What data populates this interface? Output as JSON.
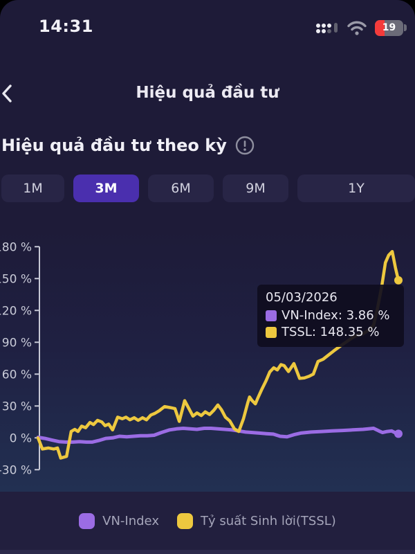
{
  "status_bar": {
    "time": "14:31",
    "battery_level": "19"
  },
  "header": {
    "title": "Hiệu quả đầu tư"
  },
  "section": {
    "title": "Hiệu quả đầu tư theo kỳ"
  },
  "tabs": [
    {
      "label": "1M",
      "selected": false
    },
    {
      "label": "3M",
      "selected": true
    },
    {
      "label": "6M",
      "selected": false
    },
    {
      "label": "9M",
      "selected": false
    },
    {
      "label": "1Y",
      "selected": false
    }
  ],
  "colors": {
    "accent": "#4a2fae",
    "vn_index": "#9b6ce4",
    "tssl": "#edc83f",
    "battery_red": "#f43b3b",
    "axis": "#c6c8d5",
    "tick_text": "#c9cbd8"
  },
  "tooltip": {
    "date": "05/03/2026",
    "rows": [
      {
        "label": "VN-Index",
        "value": "3.86 %",
        "color": "#9b6ce4"
      },
      {
        "label": "TSSL",
        "value": "148.35 %",
        "color": "#edc83f"
      }
    ]
  },
  "legend": [
    {
      "label": "VN-Index",
      "color": "#9b6ce4"
    },
    {
      "label": "Tỷ suất Sinh lời(TSSL)",
      "color": "#edc83f"
    }
  ],
  "chart_data": {
    "type": "line",
    "title": "Hiệu quả đầu tư theo kỳ",
    "period": "3M",
    "end_date": "05/03/2026",
    "ylim": [
      -30,
      180
    ],
    "yticks": [
      180,
      150,
      120,
      90,
      60,
      30,
      0,
      -30
    ],
    "ytick_suffix": " %",
    "grid": false,
    "x_axis_labels_visible": false,
    "legend_position": "bottom",
    "series": [
      {
        "key": "vn-index",
        "name": "VN-Index",
        "color": "#9b6ce4",
        "end_value": 3.86,
        "end_dot": true,
        "points": [
          [
            0,
            0.5
          ],
          [
            0.019,
            -0.5
          ],
          [
            0.038,
            -2
          ],
          [
            0.058,
            -3.5
          ],
          [
            0.077,
            -4
          ],
          [
            0.096,
            -4
          ],
          [
            0.115,
            -3.5
          ],
          [
            0.134,
            -4
          ],
          [
            0.15,
            -4
          ],
          [
            0.169,
            -2.5
          ],
          [
            0.188,
            -0.5
          ],
          [
            0.207,
            0
          ],
          [
            0.226,
            1.5
          ],
          [
            0.246,
            1
          ],
          [
            0.265,
            1.5
          ],
          [
            0.284,
            2
          ],
          [
            0.303,
            2
          ],
          [
            0.322,
            2.5
          ],
          [
            0.342,
            5
          ],
          [
            0.365,
            7.5
          ],
          [
            0.384,
            8.5
          ],
          [
            0.403,
            9
          ],
          [
            0.422,
            8.5
          ],
          [
            0.441,
            8
          ],
          [
            0.461,
            9
          ],
          [
            0.48,
            9
          ],
          [
            0.499,
            8.5
          ],
          [
            0.518,
            8
          ],
          [
            0.537,
            7.5
          ],
          [
            0.557,
            6.5
          ],
          [
            0.576,
            5.5
          ],
          [
            0.595,
            5
          ],
          [
            0.614,
            4.5
          ],
          [
            0.633,
            4
          ],
          [
            0.653,
            3.5
          ],
          [
            0.672,
            1.5
          ],
          [
            0.691,
            1
          ],
          [
            0.71,
            3
          ],
          [
            0.729,
            4.5
          ],
          [
            0.758,
            5.5
          ],
          [
            0.787,
            6
          ],
          [
            0.816,
            6.5
          ],
          [
            0.845,
            7
          ],
          [
            0.873,
            7.5
          ],
          [
            0.902,
            8
          ],
          [
            0.917,
            8.5
          ],
          [
            0.931,
            9
          ],
          [
            0.946,
            6.5
          ],
          [
            0.956,
            5
          ],
          [
            0.969,
            6
          ],
          [
            0.981,
            6.5
          ],
          [
            0.99,
            5
          ],
          [
            1,
            3.86
          ]
        ]
      },
      {
        "key": "tssl",
        "name": "Tỷ suất Sinh lời(TSSL)",
        "color": "#edc83f",
        "end_value": 148.35,
        "end_dot": true,
        "points": [
          [
            0,
            0
          ],
          [
            0.012,
            -10.5
          ],
          [
            0.029,
            -9.5
          ],
          [
            0.044,
            -10.5
          ],
          [
            0.054,
            -9.5
          ],
          [
            0.063,
            -19
          ],
          [
            0.079,
            -17.5
          ],
          [
            0.092,
            6
          ],
          [
            0.102,
            8
          ],
          [
            0.111,
            6
          ],
          [
            0.121,
            11
          ],
          [
            0.132,
            9.5
          ],
          [
            0.144,
            14.5
          ],
          [
            0.154,
            12.5
          ],
          [
            0.165,
            16.5
          ],
          [
            0.177,
            15
          ],
          [
            0.186,
            11.5
          ],
          [
            0.196,
            13
          ],
          [
            0.207,
            7.5
          ],
          [
            0.221,
            19.5
          ],
          [
            0.234,
            18
          ],
          [
            0.244,
            19.5
          ],
          [
            0.255,
            17
          ],
          [
            0.267,
            19
          ],
          [
            0.278,
            16.5
          ],
          [
            0.29,
            19
          ],
          [
            0.301,
            17
          ],
          [
            0.313,
            21.5
          ],
          [
            0.324,
            23
          ],
          [
            0.336,
            25.5
          ],
          [
            0.351,
            29.5
          ],
          [
            0.367,
            28.5
          ],
          [
            0.38,
            27.5
          ],
          [
            0.392,
            15.5
          ],
          [
            0.407,
            35
          ],
          [
            0.418,
            28
          ],
          [
            0.43,
            20.5
          ],
          [
            0.441,
            23.5
          ],
          [
            0.453,
            21
          ],
          [
            0.464,
            24.5
          ],
          [
            0.476,
            22
          ],
          [
            0.488,
            26
          ],
          [
            0.499,
            31
          ],
          [
            0.509,
            26.5
          ],
          [
            0.52,
            19.5
          ],
          [
            0.532,
            16
          ],
          [
            0.545,
            8.5
          ],
          [
            0.557,
            6
          ],
          [
            0.57,
            18
          ],
          [
            0.582,
            33
          ],
          [
            0.587,
            38.5
          ],
          [
            0.593,
            35.5
          ],
          [
            0.603,
            32
          ],
          [
            0.61,
            37.5
          ],
          [
            0.62,
            45
          ],
          [
            0.633,
            54
          ],
          [
            0.643,
            62
          ],
          [
            0.654,
            66
          ],
          [
            0.664,
            64
          ],
          [
            0.674,
            69
          ],
          [
            0.683,
            68
          ],
          [
            0.695,
            62.5
          ],
          [
            0.71,
            70
          ],
          [
            0.726,
            56
          ],
          [
            0.739,
            56.5
          ],
          [
            0.752,
            58
          ],
          [
            0.764,
            60
          ],
          [
            0.777,
            72
          ],
          [
            0.791,
            74
          ],
          [
            0.806,
            78
          ],
          [
            0.821,
            82
          ],
          [
            0.837,
            86
          ],
          [
            0.854,
            90
          ],
          [
            0.871,
            94
          ],
          [
            0.887,
            97
          ],
          [
            0.9,
            97.5
          ],
          [
            0.916,
            101
          ],
          [
            0.931,
            106
          ],
          [
            0.942,
            122
          ],
          [
            0.954,
            143
          ],
          [
            0.964,
            165
          ],
          [
            0.973,
            172
          ],
          [
            0.983,
            175.5
          ],
          [
            0.992,
            160
          ],
          [
            1,
            148.35
          ]
        ]
      }
    ]
  }
}
